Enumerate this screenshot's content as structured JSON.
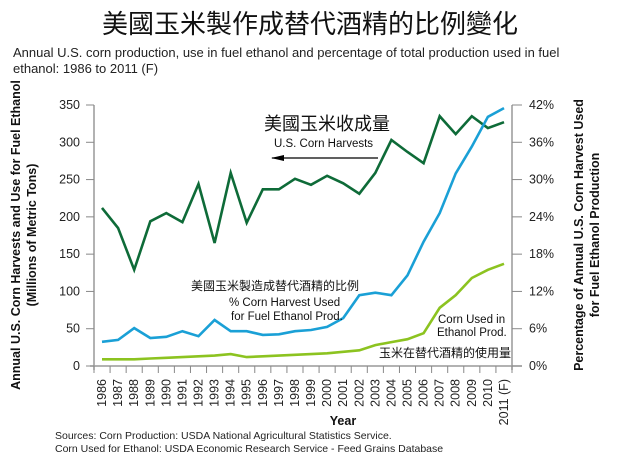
{
  "title": "美國玉米製作成替代酒精的比例變化",
  "subtitle": "Annual U.S. corn production, use in fuel ethanol and percentage of total production used in fuel ethanol: 1986 to 2011 (F)",
  "sources": [
    "Sources: Corn Production: USDA National Agricultural Statistics Service.",
    "Corn Used for Ethanol: USDA Economic Research Service - Feed Grains Database"
  ],
  "annotations": {
    "harvest_cn": "美國玉米收成量",
    "harvest_en": "U.S. Corn Harvests",
    "percent_cn": "美國玉米製造成替代酒精的比例",
    "percent_en_1": "% Corn Harvest Used",
    "percent_en_2": "for Fuel Ethanol Prod.",
    "ethanol_en_1": "Corn Used in",
    "ethanol_en_2": "Ethanol Prod.",
    "ethanol_cn": "玉米在替代酒精的使用量"
  },
  "chart_data": {
    "type": "line",
    "title": "美國玉米製作成替代酒精的比例變化",
    "xlabel": "Year",
    "ylabel": "Annual U.S. Corn Harvests and Use for Fuel Ethanol (Millions of Metric Tons)",
    "ylabel_lines": [
      "Annual U.S. Corn Harvests and Use for Fuel Ethanol",
      "(Millions of Metric Tons)"
    ],
    "y2label": "Percentage of Annual U.S. Corn Harvest Used for Fuel Ethanol Production",
    "y2label_lines": [
      "Percentage of Annual U.S. Corn Harvest Used",
      "for Fuel Ethanol Production"
    ],
    "categories": [
      "1986",
      "1987",
      "1988",
      "1989",
      "1990",
      "1991",
      "1992",
      "1993",
      "1994",
      "1995",
      "1996",
      "1997",
      "1998",
      "1999",
      "2000",
      "2001",
      "2002",
      "2003",
      "2004",
      "2005",
      "2006",
      "2007",
      "2008",
      "2009",
      "2010",
      "2011 (F)"
    ],
    "ylim": [
      0,
      350
    ],
    "yticks": [
      0,
      50,
      100,
      150,
      200,
      250,
      300,
      350
    ],
    "y2lim": [
      0,
      42
    ],
    "y2ticks": [
      0,
      6,
      12,
      18,
      24,
      30,
      36,
      42
    ],
    "y2tick_labels": [
      "0%",
      "6%",
      "12%",
      "18%",
      "24%",
      "30%",
      "36%",
      "42%"
    ],
    "grid": false,
    "series": [
      {
        "name": "U.S. Corn Harvests",
        "axis": "left",
        "color": "#0e6b38",
        "values": [
          212,
          185,
          129,
          194,
          205,
          193,
          244,
          165,
          259,
          192,
          237,
          237,
          251,
          243,
          255,
          245,
          231,
          259,
          303,
          287,
          272,
          335,
          311,
          335,
          319,
          327
        ]
      },
      {
        "name": "% Corn Harvest Used for Fuel Ethanol Prod.",
        "axis": "right",
        "color": "#1aa0d6",
        "values": [
          3.9,
          4.2,
          6.1,
          4.5,
          4.7,
          5.6,
          4.8,
          7.4,
          5.6,
          5.6,
          5.0,
          5.1,
          5.6,
          5.8,
          6.3,
          7.7,
          11.4,
          11.8,
          11.4,
          14.6,
          20.0,
          24.6,
          31.0,
          35.3,
          40.1,
          41.5
        ]
      },
      {
        "name": "Corn Used in Ethanol Prod.",
        "axis": "left",
        "color": "#8cc320",
        "values": [
          9,
          9,
          9,
          10,
          11,
          12,
          13,
          14,
          16,
          12,
          13,
          14,
          15,
          16,
          17,
          19,
          21,
          28,
          32,
          36,
          44,
          78,
          95,
          118,
          129,
          137
        ]
      }
    ]
  }
}
